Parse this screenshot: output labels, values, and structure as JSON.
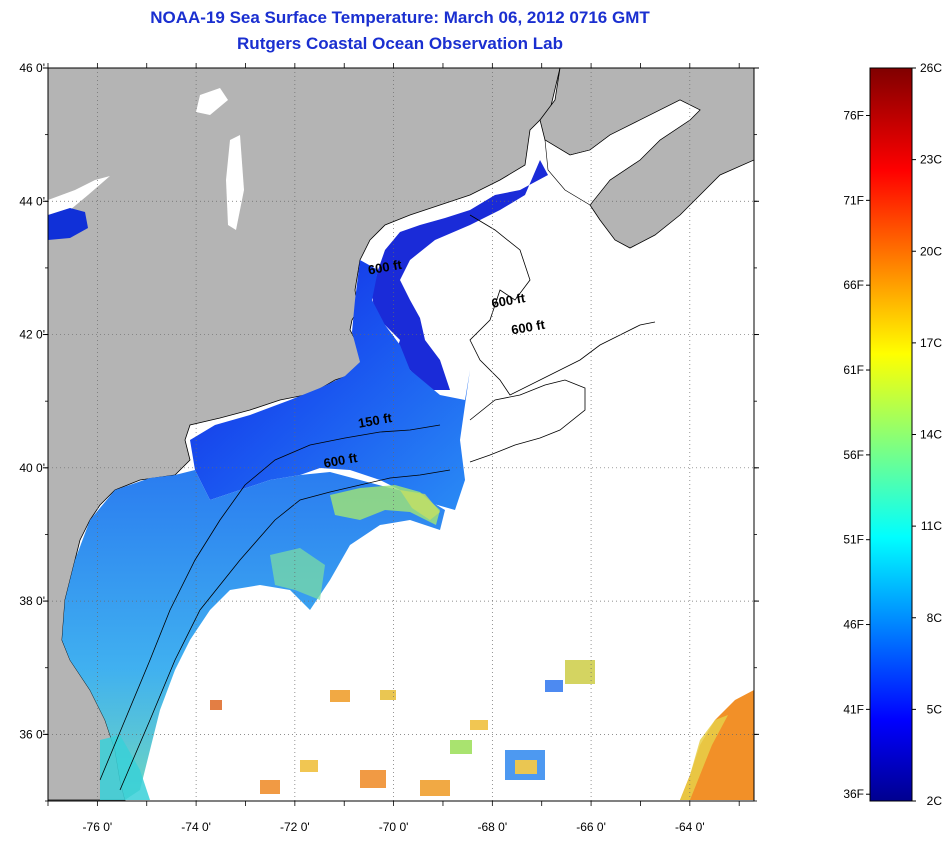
{
  "title": {
    "line1": "NOAA-19 Sea Surface Temperature:  March 06, 2012 0716 GMT",
    "line2": "Rutgers Coastal Ocean Observation Lab"
  },
  "map": {
    "latitude_labels": [
      "46 0'",
      "44 0'",
      "42 0'",
      "40 0'",
      "38 0'",
      "36 0'"
    ],
    "latitude_values": [
      46,
      44,
      42,
      40,
      38,
      36
    ],
    "longitude_labels": [
      "-76 0'",
      "-74 0'",
      "-72 0'",
      "-70 0'",
      "-68 0'",
      "-66 0'",
      "-64 0'"
    ],
    "longitude_values": [
      -76,
      -74,
      -72,
      -70,
      -68,
      -66,
      -64
    ],
    "lat_range": [
      35,
      46
    ],
    "lon_range": [
      -77,
      -62.7
    ],
    "contour_labels": [
      {
        "text": "600 ft",
        "lon": -68.0,
        "lat": 42.4
      },
      {
        "text": "600 ft",
        "lon": -67.6,
        "lat": 42.0
      },
      {
        "text": "600 ft",
        "lon": -71.4,
        "lat": 40.0
      },
      {
        "text": "150 ft",
        "lon": -70.7,
        "lat": 40.6
      },
      {
        "text": "600 ft",
        "lon": -70.5,
        "lat": 42.9
      }
    ],
    "colors": {
      "land": "#b4b4b4",
      "ocean_nodata": "#ffffff",
      "grid": "#6a6a6a",
      "contour": "#000000"
    }
  },
  "colorbar": {
    "fahrenheit_labels": [
      "76F",
      "71F",
      "66F",
      "61F",
      "56F",
      "51F",
      "46F",
      "41F",
      "36F"
    ],
    "fahrenheit_values": [
      76,
      71,
      66,
      61,
      56,
      51,
      46,
      41,
      36
    ],
    "celsius_labels": [
      "26C",
      "23C",
      "20C",
      "17C",
      "14C",
      "11C",
      "8C",
      "5C",
      "2C"
    ],
    "celsius_values": [
      26,
      23,
      20,
      17,
      14,
      11,
      8,
      5,
      2
    ],
    "range_c": [
      2,
      26
    ],
    "colormap": "jet"
  }
}
